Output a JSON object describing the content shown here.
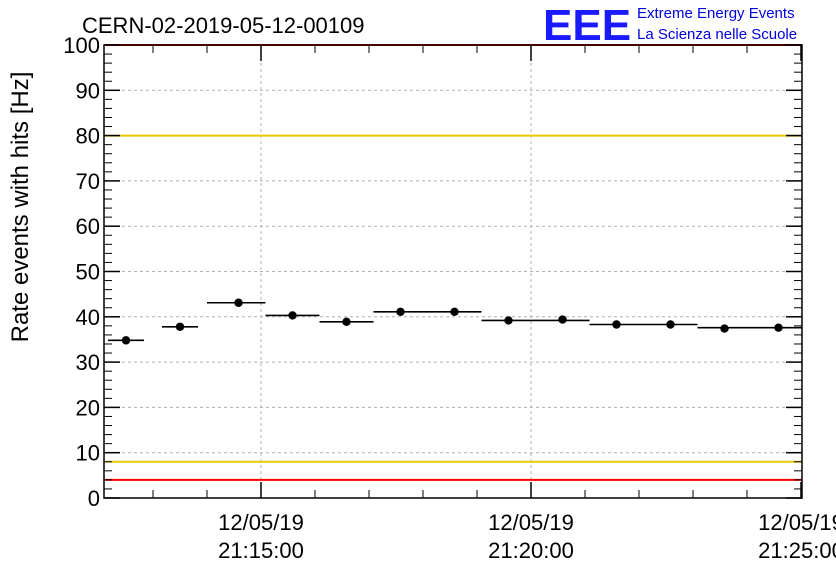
{
  "run_title": "CERN-02-2019-05-12-00109",
  "logo": {
    "mark": "EEE",
    "line1": "Extreme Energy Events",
    "line2": "La Scienza nelle Scuole",
    "color": "#0000dd"
  },
  "chart_data": {
    "type": "scatter",
    "ylabel": "Rate events with hits [Hz]",
    "ylim": [
      0,
      100
    ],
    "xlim": [
      "2019-05-12 21:12:10",
      "2019-05-12 21:25:00"
    ],
    "grid": true,
    "y_ticks": [
      0,
      10,
      20,
      30,
      40,
      50,
      60,
      70,
      80,
      90,
      100
    ],
    "x_ticks": [
      {
        "t": "2019-05-12 21:15:00",
        "date": "12/05/19",
        "time": "21:15:00"
      },
      {
        "t": "2019-05-12 21:20:00",
        "date": "12/05/19",
        "time": "21:20:00"
      },
      {
        "t": "2019-05-12 21:25:00",
        "date": "12/05/19",
        "time": "21:25:00"
      }
    ],
    "reference_lines": [
      {
        "y": 100,
        "color": "#ff0000"
      },
      {
        "y": 80,
        "color": "#e8c800"
      },
      {
        "y": 8,
        "color": "#e8c800"
      },
      {
        "y": 4,
        "color": "#ff0000"
      }
    ],
    "series": [
      {
        "color": "#000000",
        "points": [
          {
            "x_start": "2019-05-12 21:12:10",
            "x_end": "2019-05-12 21:12:50",
            "y": 34.8
          },
          {
            "x_start": "2019-05-12 21:13:10",
            "x_end": "2019-05-12 21:13:50",
            "y": 37.8
          },
          {
            "x_start": "2019-05-12 21:14:00",
            "x_end": "2019-05-12 21:15:05",
            "y": 43.1
          },
          {
            "x_start": "2019-05-12 21:15:05",
            "x_end": "2019-05-12 21:16:05",
            "y": 40.3
          },
          {
            "x_start": "2019-05-12 21:16:05",
            "x_end": "2019-05-12 21:17:05",
            "y": 38.9
          },
          {
            "x_start": "2019-05-12 21:17:05",
            "x_end": "2019-05-12 21:19:05",
            "y": 41.1
          },
          {
            "x_start": "2019-05-12 21:19:05",
            "x_end": "2019-05-12 21:21:05",
            "y": 39.2
          },
          {
            "x_start": "2019-05-12 21:21:05",
            "x_end": "2019-05-12 21:23:05",
            "y": 38.3
          },
          {
            "x_start": "2019-05-12 21:23:05",
            "x_end": "2019-05-12 21:25:05",
            "y": 37.6
          }
        ],
        "markers": [
          {
            "x": "2019-05-12 21:12:30",
            "y": 34.8
          },
          {
            "x": "2019-05-12 21:13:30",
            "y": 37.8
          },
          {
            "x": "2019-05-12 21:14:35",
            "y": 43.1
          },
          {
            "x": "2019-05-12 21:15:35",
            "y": 40.3
          },
          {
            "x": "2019-05-12 21:16:35",
            "y": 38.9
          },
          {
            "x": "2019-05-12 21:17:35",
            "y": 41.1
          },
          {
            "x": "2019-05-12 21:18:35",
            "y": 41.1
          },
          {
            "x": "2019-05-12 21:19:35",
            "y": 39.2
          },
          {
            "x": "2019-05-12 21:20:35",
            "y": 39.4
          },
          {
            "x": "2019-05-12 21:21:35",
            "y": 38.3
          },
          {
            "x": "2019-05-12 21:22:35",
            "y": 38.3
          },
          {
            "x": "2019-05-12 21:23:35",
            "y": 37.4
          },
          {
            "x": "2019-05-12 21:24:35",
            "y": 37.6
          }
        ]
      }
    ]
  }
}
